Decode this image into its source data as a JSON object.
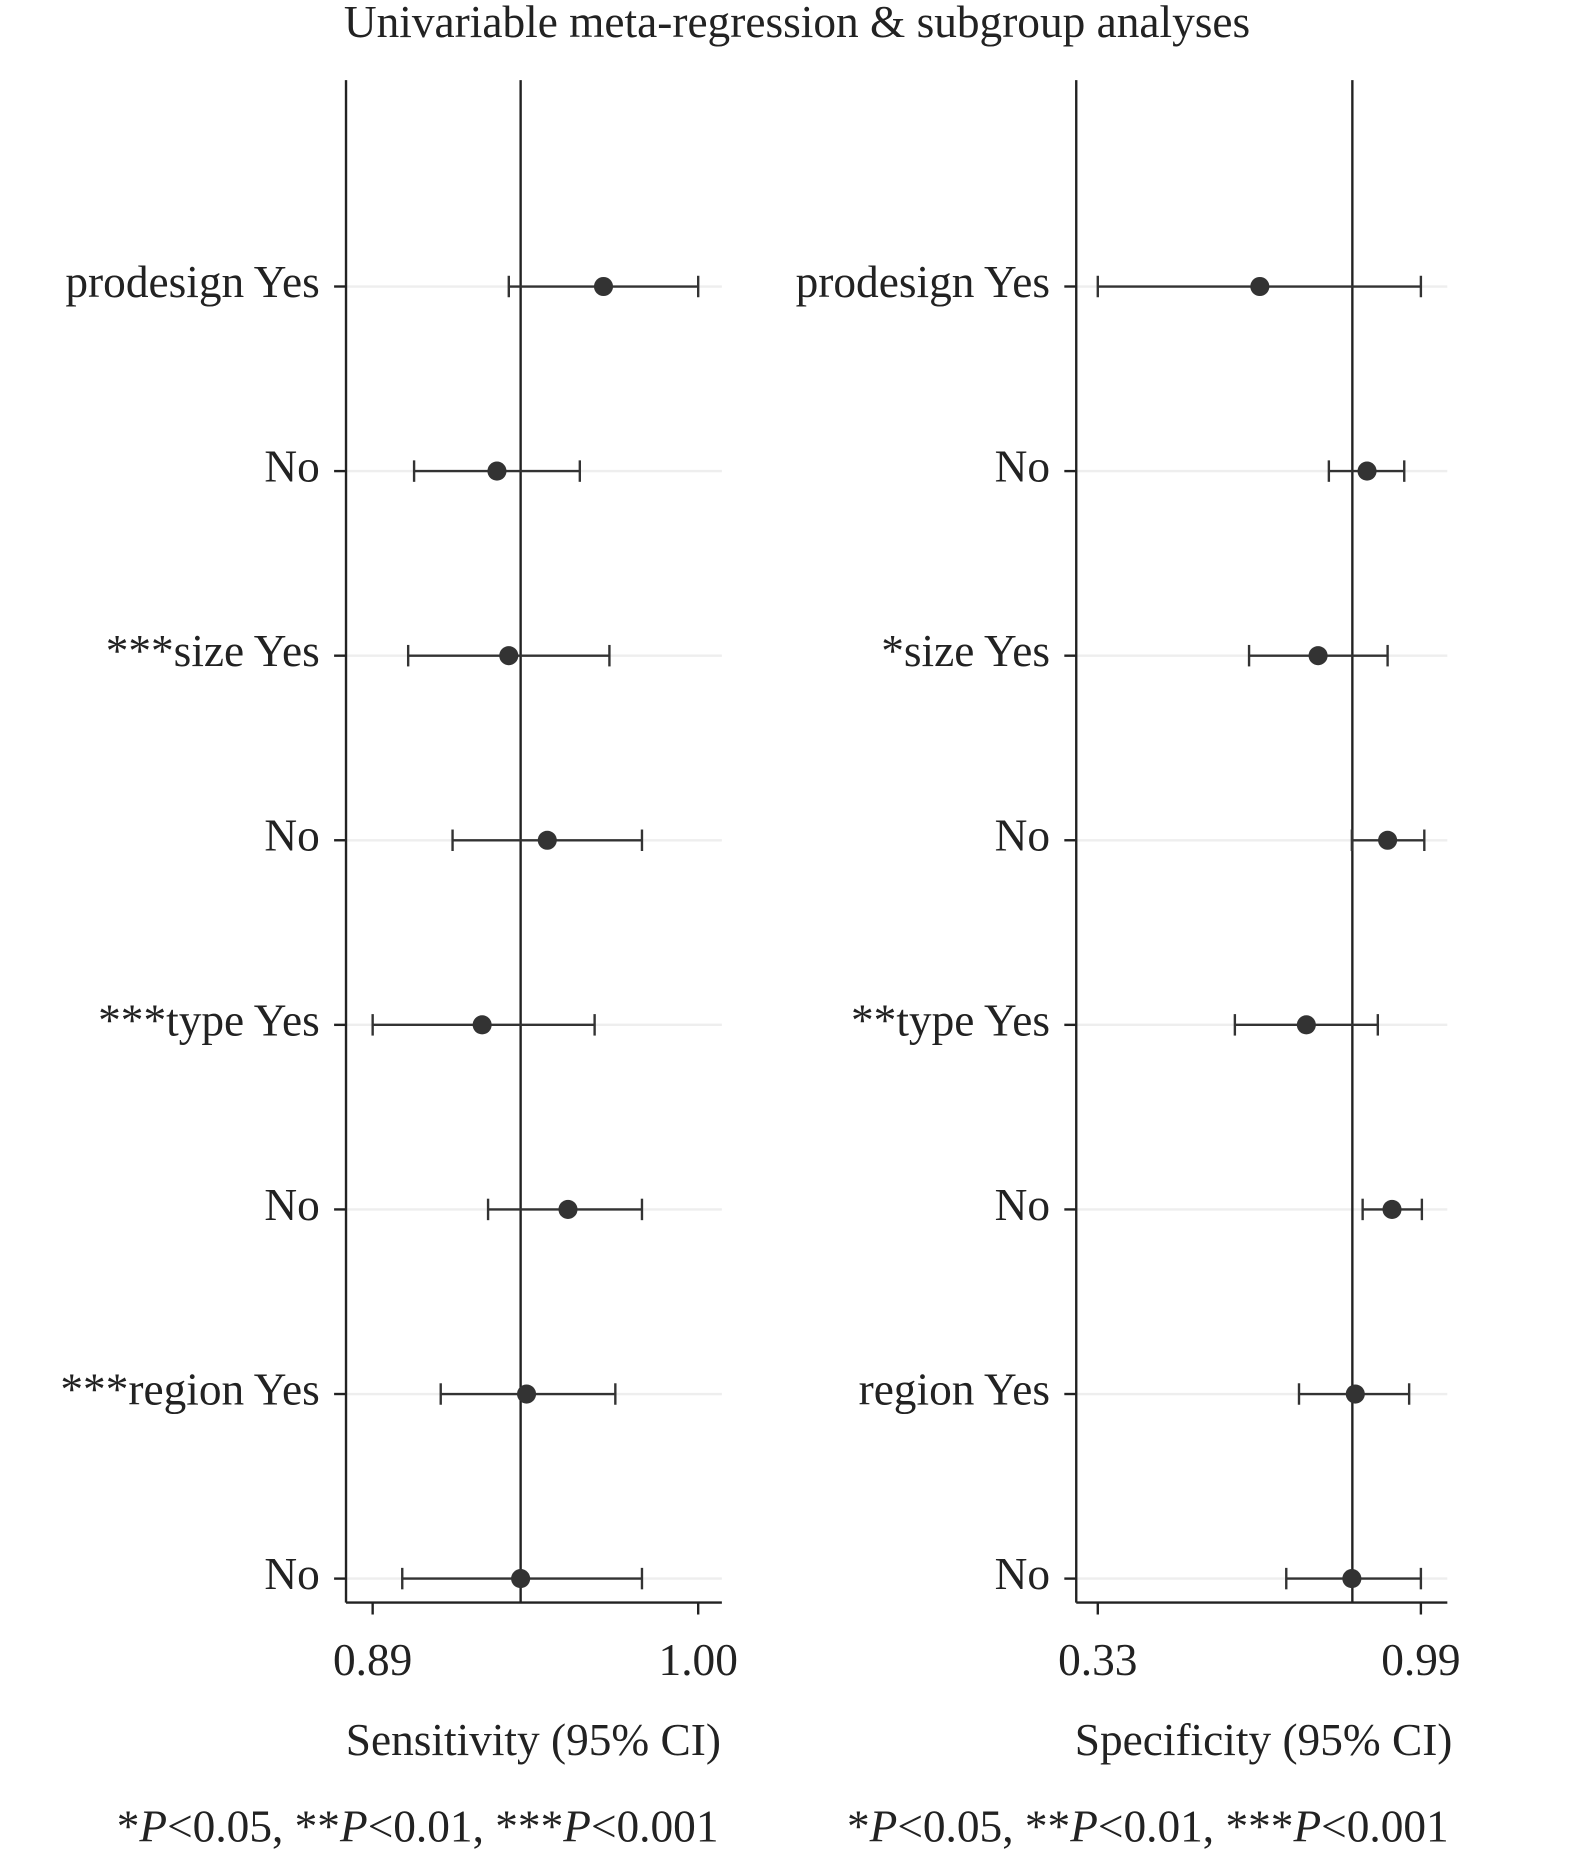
{
  "title": "Univariable meta-regression & subgroup analyses",
  "chart_data": [
    {
      "type": "forest",
      "color": "#333333",
      "grid": true,
      "categories": [
        "prodesign Yes",
        "No",
        "***size Yes",
        "No",
        "***type Yes",
        "No",
        "***region Yes",
        "No"
      ],
      "values": [
        0.968,
        0.932,
        0.936,
        0.949,
        0.927,
        0.956,
        0.942,
        0.94
      ],
      "lower": [
        0.936,
        0.904,
        0.902,
        0.917,
        0.89,
        0.929,
        0.913,
        0.9
      ],
      "upper": [
        1.0,
        0.96,
        0.97,
        0.981,
        0.965,
        0.981,
        0.972,
        0.981
      ],
      "reference_line": 0.94,
      "xlim": [
        0.881,
        1.008
      ],
      "xticks": [
        {
          "value": 0.89,
          "label": "0.89"
        },
        {
          "value": 1.0,
          "label": "1.00"
        }
      ],
      "xlabel": "Sensitivity (95% CI)",
      "footnote": "*P<0.05, **P<0.01, ***P<0.001"
    },
    {
      "type": "forest",
      "color": "#333333",
      "grid": true,
      "categories": [
        "prodesign Yes",
        "No",
        "*size Yes",
        "No",
        "**type Yes",
        "No",
        "region Yes",
        "No"
      ],
      "values": [
        0.661,
        0.88,
        0.78,
        0.922,
        0.756,
        0.931,
        0.856,
        0.849
      ],
      "lower": [
        0.33,
        0.802,
        0.639,
        0.849,
        0.61,
        0.871,
        0.741,
        0.715
      ],
      "upper": [
        0.99,
        0.956,
        0.922,
        0.997,
        0.902,
        0.992,
        0.966,
        0.99
      ],
      "reference_line": 0.85,
      "xlim": [
        0.286,
        1.044
      ],
      "xticks": [
        0.33,
        0.99
      ],
      "xlabel": "Specificity (95% CI)",
      "footnote": "*P<0.05, **P<0.01, ***P<0.001"
    }
  ]
}
